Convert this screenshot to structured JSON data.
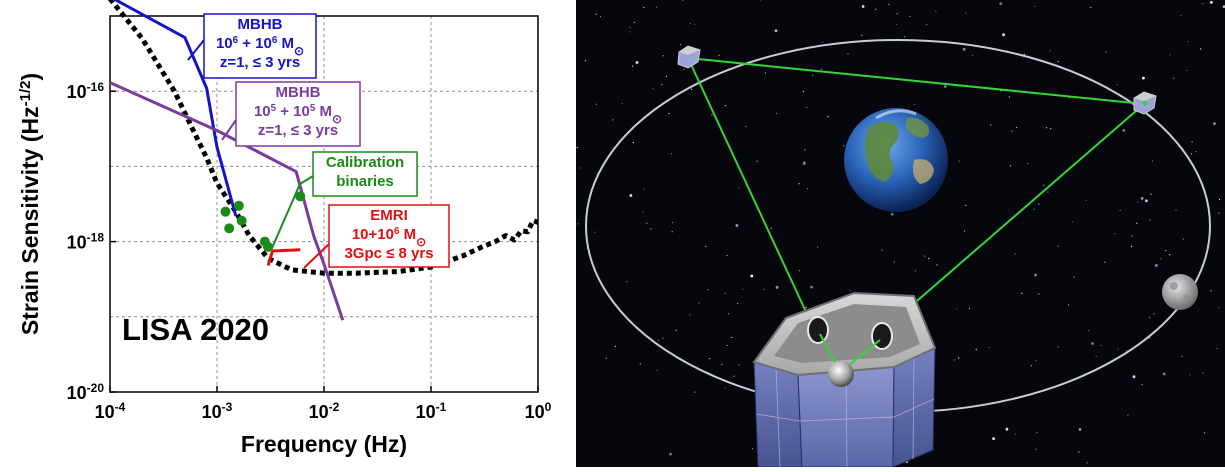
{
  "chart_data": {
    "type": "line",
    "scale": {
      "x": "log",
      "y": "log"
    },
    "xlabel": "Frequency (Hz)",
    "ylabel_main": "Strain Sensitivity (Hz",
    "ylabel_sup": "-1/2",
    "ylabel_close": ")",
    "xlim": [
      0.0001,
      1
    ],
    "ylim": [
      1e-20,
      1e-15
    ],
    "grid": true,
    "x_ticks": [
      {
        "value": 0.0001,
        "base": "10",
        "exp": "-4"
      },
      {
        "value": 0.001,
        "base": "10",
        "exp": "-3"
      },
      {
        "value": 0.01,
        "base": "10",
        "exp": "-2"
      },
      {
        "value": 0.1,
        "base": "10",
        "exp": "-1"
      },
      {
        "value": 1,
        "base": "10",
        "exp": "0"
      }
    ],
    "y_ticks": [
      {
        "value": 1e-20,
        "base": "10",
        "exp": "-20"
      },
      {
        "value": 1e-18,
        "base": "10",
        "exp": "-18"
      },
      {
        "value": 1e-16,
        "base": "10",
        "exp": "-16"
      }
    ],
    "overlay_label": "LISA 2020",
    "sensitivity_curve": {
      "color": "#000000",
      "style": "dotted",
      "points": [
        [
          0.0001,
          1.7e-15
        ],
        [
          0.0002,
          5e-16
        ],
        [
          0.0004,
          1e-16
        ],
        [
          0.0006,
          3e-17
        ],
        [
          0.0008,
          1.3e-17
        ],
        [
          0.001,
          6e-18
        ],
        [
          0.0015,
          2.5e-18
        ],
        [
          0.002,
          1.2e-18
        ],
        [
          0.003,
          6e-19
        ],
        [
          0.005,
          4.2e-19
        ],
        [
          0.01,
          3.8e-19
        ],
        [
          0.02,
          3.8e-19
        ],
        [
          0.05,
          4e-19
        ],
        [
          0.1,
          4.6e-19
        ],
        [
          0.2,
          6.5e-19
        ],
        [
          0.3,
          8.5e-19
        ],
        [
          0.4,
          1e-18
        ],
        [
          0.5,
          1.2e-18
        ],
        [
          0.6,
          1.05e-18
        ],
        [
          0.7,
          1.4e-18
        ],
        [
          0.8,
          1.35e-18
        ],
        [
          0.9,
          1.9e-18
        ],
        [
          1,
          1.8e-18
        ]
      ]
    },
    "series": [
      {
        "color": "#1414c8",
        "points": [
          [
            0.0001,
            1.8e-15
          ],
          [
            0.0005,
            5.2e-16
          ],
          [
            0.0008,
            1.1e-16
          ],
          [
            0.001,
            1.8e-17
          ],
          [
            0.0015,
            2.2e-18
          ]
        ]
      },
      {
        "color": "#7a3aa0",
        "points": [
          [
            0.0001,
            1.3e-16
          ],
          [
            0.001,
            3e-17
          ],
          [
            0.0055,
            8.5e-18
          ],
          [
            0.008,
            1.2e-18
          ],
          [
            0.01,
            5e-19
          ],
          [
            0.015,
            9e-20
          ]
        ]
      },
      {
        "color": "#e01010",
        "points": [
          [
            0.003,
            4.8e-19
          ],
          [
            0.0033,
            7.5e-19
          ],
          [
            0.006,
            7.8e-19
          ]
        ]
      }
    ],
    "calibration_points": {
      "color": "#1a8a1a",
      "points": [
        [
          0.0012,
          2.5e-18
        ],
        [
          0.0013,
          1.5e-18
        ],
        [
          0.0016,
          3e-18
        ],
        [
          0.0017,
          1.9e-18
        ],
        [
          0.0028,
          1e-18
        ],
        [
          0.003,
          8.5e-19
        ],
        [
          0.006,
          4e-18
        ]
      ]
    },
    "annotations": [
      {
        "id": "mbhb1",
        "color": "#1414c8",
        "lines": [
          {
            "parts": [
              {
                "t": "MBHB"
              }
            ]
          },
          {
            "parts": [
              {
                "t": "10"
              },
              {
                "t": "6",
                "sup": true
              },
              {
                "t": " + 10"
              },
              {
                "t": "6",
                "sup": true
              },
              {
                "t": " M"
              },
              {
                "t": "⊙",
                "sub": true
              }
            ]
          },
          {
            "parts": [
              {
                "t": "z=1, ≤ 3 yrs"
              }
            ]
          }
        ]
      },
      {
        "id": "mbhb2",
        "color": "#7a3aa0",
        "lines": [
          {
            "parts": [
              {
                "t": "MBHB"
              }
            ]
          },
          {
            "parts": [
              {
                "t": "10"
              },
              {
                "t": "5",
                "sup": true
              },
              {
                "t": " + 10"
              },
              {
                "t": "5",
                "sup": true
              },
              {
                "t": " M"
              },
              {
                "t": "⊙",
                "sub": true
              }
            ]
          },
          {
            "parts": [
              {
                "t": "z=1, ≤ 3 yrs"
              }
            ]
          }
        ]
      },
      {
        "id": "calib",
        "color": "#1a8a1a",
        "lines": [
          {
            "parts": [
              {
                "t": "Calibration"
              }
            ]
          },
          {
            "parts": [
              {
                "t": "binaries"
              }
            ]
          }
        ]
      },
      {
        "id": "emri",
        "color": "#e01010",
        "lines": [
          {
            "parts": [
              {
                "t": "EMRI"
              }
            ]
          },
          {
            "parts": [
              {
                "t": "10+10"
              },
              {
                "t": "6",
                "sup": true
              },
              {
                "t": " M"
              },
              {
                "t": "⊙",
                "sub": true
              }
            ]
          },
          {
            "parts": [
              {
                "t": "3Gpc ≤ 8 yrs"
              }
            ]
          }
        ]
      }
    ]
  },
  "colors": {
    "space_background": "#05070d",
    "orbit": "#c8ccd4",
    "laser": "#36d436",
    "spacecraft_panel": "#6a78b8"
  },
  "icons": [
    "earth-icon",
    "moon-icon",
    "spacecraft-icon"
  ]
}
